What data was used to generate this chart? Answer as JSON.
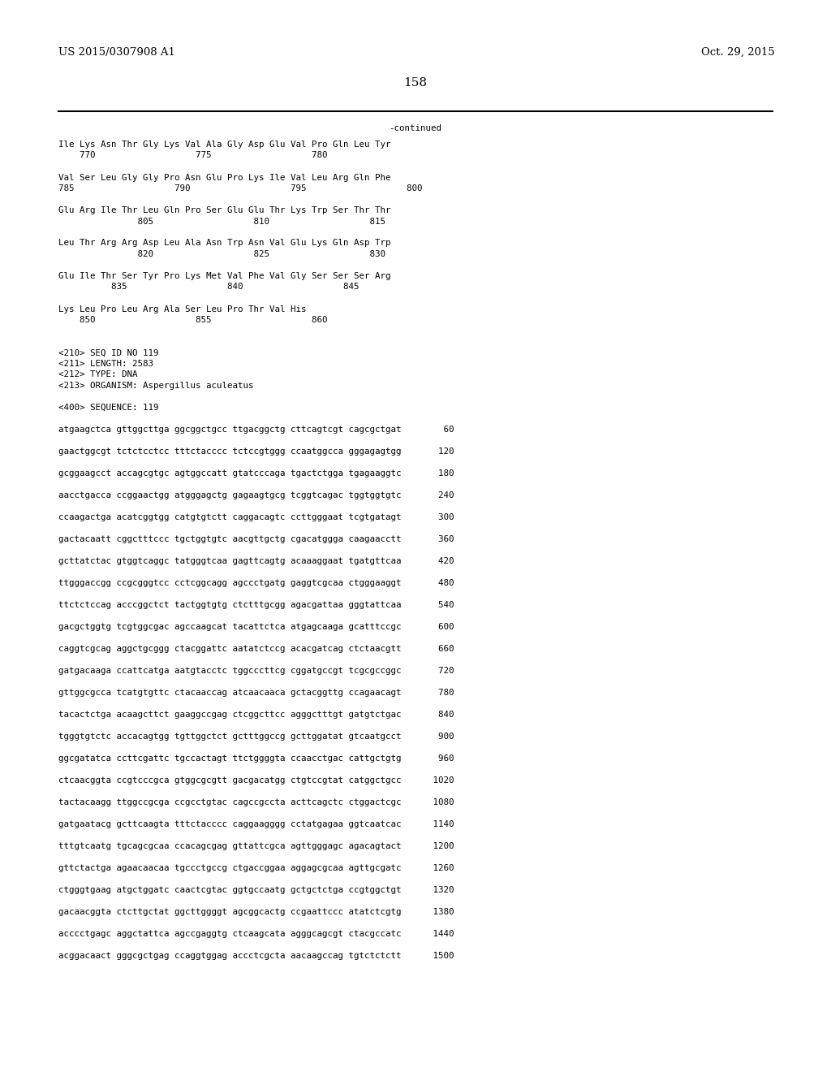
{
  "header_left": "US 2015/0307908 A1",
  "header_right": "Oct. 29, 2015",
  "page_number": "158",
  "continued_label": "-continued",
  "background_color": "#ffffff",
  "text_color": "#000000",
  "font_size_header": 9.5,
  "font_size_body": 7.8,
  "font_size_page": 11,
  "body_lines": [
    "Ile Lys Asn Thr Gly Lys Val Ala Gly Asp Glu Val Pro Gln Leu Tyr",
    "    770                   775                   780",
    "",
    "Val Ser Leu Gly Gly Pro Asn Glu Pro Lys Ile Val Leu Arg Gln Phe",
    "785                   790                   795                   800",
    "",
    "Glu Arg Ile Thr Leu Gln Pro Ser Glu Glu Thr Lys Trp Ser Thr Thr",
    "               805                   810                   815",
    "",
    "Leu Thr Arg Arg Asp Leu Ala Asn Trp Asn Val Glu Lys Gln Asp Trp",
    "               820                   825                   830",
    "",
    "Glu Ile Thr Ser Tyr Pro Lys Met Val Phe Val Gly Ser Ser Ser Arg",
    "          835                   840                   845",
    "",
    "Lys Leu Pro Leu Arg Ala Ser Leu Pro Thr Val His",
    "    850                   855                   860",
    "",
    "",
    "<210> SEQ ID NO 119",
    "<211> LENGTH: 2583",
    "<212> TYPE: DNA",
    "<213> ORGANISM: Aspergillus aculeatus",
    "",
    "<400> SEQUENCE: 119",
    "",
    "atgaagctca gttggcttga ggcggctgcc ttgacggctg cttcagtcgt cagcgctgat        60",
    "",
    "gaactggcgt tctctcctcc tttctacccc tctccgtggg ccaatggcca gggagagtgg       120",
    "",
    "gcggaagcct accagcgtgc agtggccatt gtatcccaga tgactctgga tgagaaggtc       180",
    "",
    "aacctgacca ccggaactgg atgggagctg gagaagtgcg tcggtcagac tggtggtgtc       240",
    "",
    "ccaagactga acatcggtgg catgtgtctt caggacagtc ccttgggaat tcgtgatagt       300",
    "",
    "gactacaatt cggctttccc tgctggtgtc aacgttgctg cgacatggga caagaacctt       360",
    "",
    "gcttatctac gtggtcaggc tatgggtcaa gagttcagtg acaaaggaat tgatgttcaa       420",
    "",
    "ttgggaccgg ccgcgggtcc cctcggcagg agccctgatg gaggtcgcaa ctgggaaggt       480",
    "",
    "ttctctccag acccggctct tactggtgtg ctctttgcgg agacgattaa gggtattcaa       540",
    "",
    "gacgctggtg tcgtggcgac agccaagcat tacattctca atgagcaaga gcatttccgc       600",
    "",
    "caggtcgcag aggctgcggg ctacggattc aatatctccg acacgatcag ctctaacgtt       660",
    "",
    "gatgacaaga ccattcatga aatgtacctc tggcccttcg cggatgccgt tcgcgccggc       720",
    "",
    "gttggcgcca tcatgtgttc ctacaaccag atcaacaaca gctacggttg ccagaacagt       780",
    "",
    "tacactctga acaagcttct gaaggccgag ctcggcttcc agggctttgt gatgtctgac       840",
    "",
    "tgggtgtctc accacagtgg tgttggctct gctttggccg gcttggatat gtcaatgcct       900",
    "",
    "ggcgatatca ccttcgattc tgccactagt ttctggggta ccaacctgac cattgctgtg       960",
    "",
    "ctcaacggta ccgtcccgca gtggcgcgtt gacgacatgg ctgtccgtat catggctgcc      1020",
    "",
    "tactacaagg ttggccgcga ccgcctgtac cagccgccta acttcagctc ctggactcgc      1080",
    "",
    "gatgaatacg gcttcaagta tttctacccc caggaagggg cctatgagaa ggtcaatcac      1140",
    "",
    "tttgtcaatg tgcagcgcaa ccacagcgag gttattcgca agttgggagc agacagtact      1200",
    "",
    "gttctactga agaacaacaa tgccctgccg ctgaccggaa aggagcgcaa agttgcgatc      1260",
    "",
    "ctgggtgaag atgctggatc caactcgtac ggtgccaatg gctgctctga ccgtggctgt      1320",
    "",
    "gacaacggta ctcttgctat ggcttggggt agcggcactg ccgaattccc atatctcgtg      1380",
    "",
    "acccctgagc aggctattca agccgaggtg ctcaagcata agggcagcgt ctacgccatc      1440",
    "",
    "acggacaact gggcgctgag ccaggtggag accctcgcta aacaagccag tgtctctctt      1500"
  ]
}
